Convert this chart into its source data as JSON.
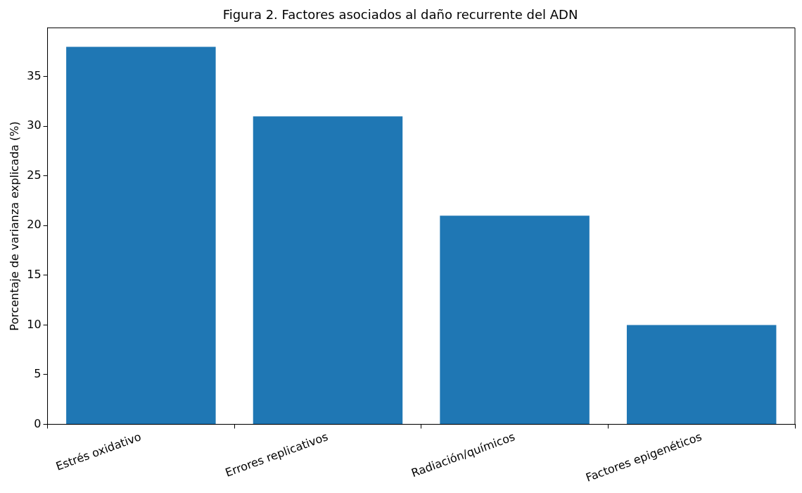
{
  "chart_data": {
    "type": "bar",
    "title": "Figura 2. Factores asociados al daño recurrente del ADN",
    "ylabel": "Porcentaje de varianza explicada (%)",
    "categories": [
      "Estrés oxidativo",
      "Errores replicativos",
      "Radiación/químicos",
      "Factores epigenéticos"
    ],
    "values": [
      38,
      31,
      21,
      10
    ],
    "color": "#1f77b4",
    "ylim": [
      0,
      39.9
    ],
    "yticks": [
      0,
      5,
      10,
      15,
      20,
      25,
      30,
      35
    ],
    "grid": false,
    "legend": false
  }
}
